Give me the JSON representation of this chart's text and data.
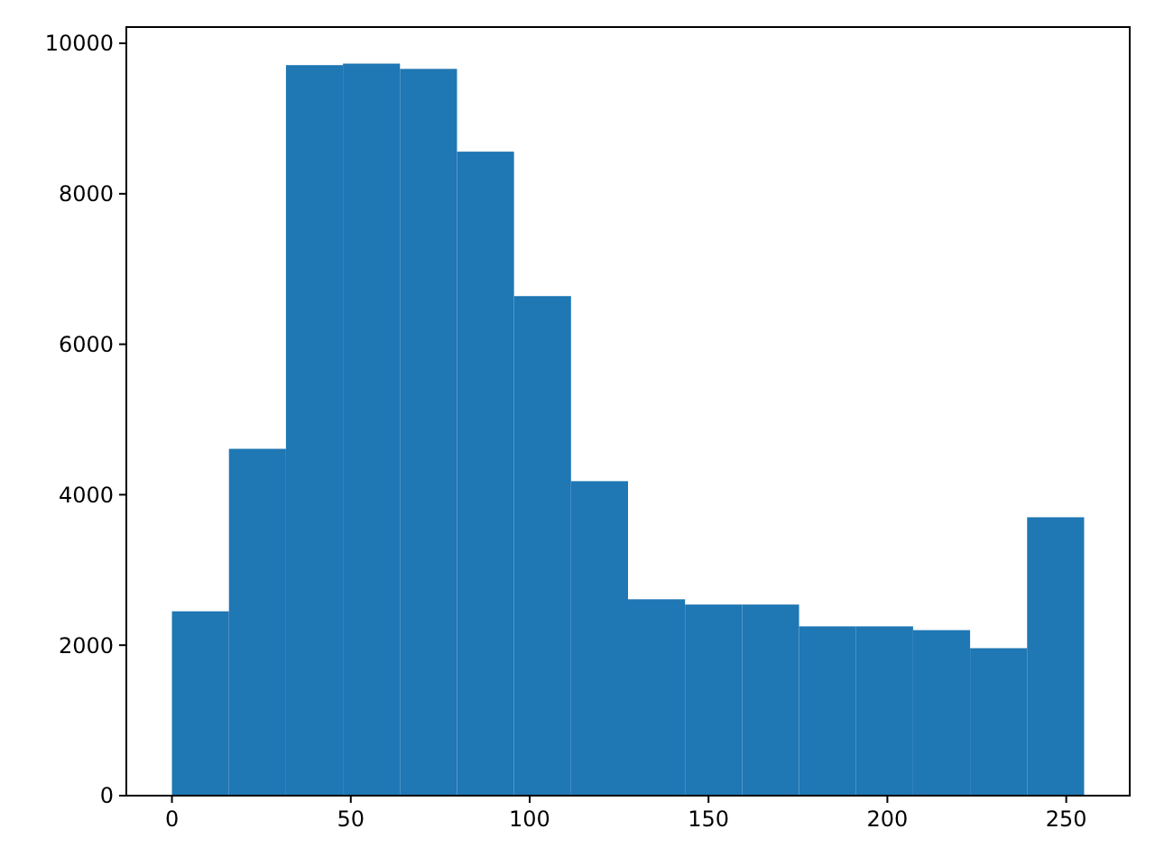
{
  "chart_data": {
    "type": "histogram",
    "bins": [
      0,
      15.9375,
      31.875,
      47.8125,
      63.75,
      79.6875,
      95.625,
      111.5625,
      127.5,
      143.4375,
      159.375,
      175.3125,
      191.25,
      207.1875,
      223.125,
      239.0625,
      255
    ],
    "values": [
      2450,
      4610,
      9710,
      9730,
      9660,
      8560,
      6640,
      4180,
      2610,
      2540,
      2540,
      2250,
      2250,
      2200,
      1960,
      3700
    ],
    "color": "#1f77b4",
    "xlim": [
      -12.75,
      267.75
    ],
    "xticks": [
      0,
      50,
      100,
      150,
      200,
      250
    ],
    "ylim": [
      0,
      10216
    ],
    "yticks": [
      0,
      2000,
      4000,
      6000,
      8000,
      10000
    ],
    "grid": false
  }
}
